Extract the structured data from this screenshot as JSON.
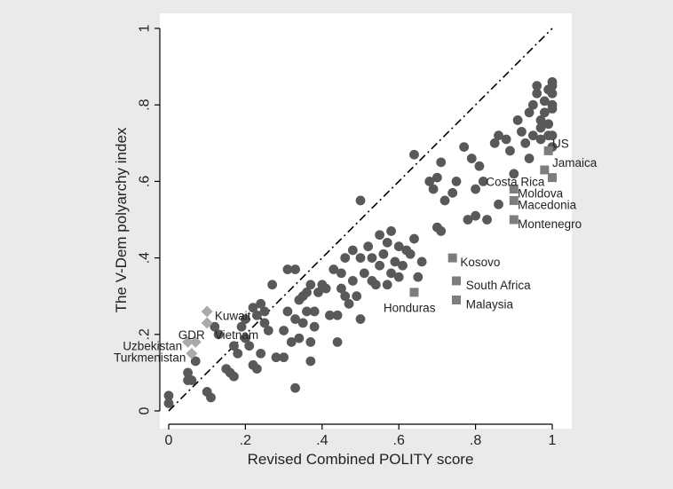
{
  "chart_data": {
    "type": "scatter",
    "title": "",
    "xlabel": "Revised Combined POLITY score",
    "ylabel": "The V-Dem polyarchy index",
    "xlim": [
      0,
      1
    ],
    "ylim": [
      0,
      1
    ],
    "x_ticks": [
      0,
      0.2,
      0.4,
      0.6,
      0.8,
      1
    ],
    "x_tick_labels": [
      "0",
      ".2",
      ".4",
      ".6",
      ".8",
      "1"
    ],
    "y_ticks": [
      0,
      0.2,
      0.4,
      0.6,
      0.8,
      1
    ],
    "y_tick_labels": [
      "0",
      ".2",
      ".4",
      ".6",
      ".8",
      "1"
    ],
    "grid": false,
    "reference_line": {
      "from": [
        0,
        0
      ],
      "to": [
        1,
        1
      ],
      "style": "dash-dot",
      "color": "#000000"
    },
    "colors": {
      "background": "#eaeaea",
      "plot_area": "#ffffff",
      "circle": "#595959",
      "square": "#7d7d7d",
      "diamond": "#aaaaaa"
    },
    "series": [
      {
        "marker": "circle",
        "points": [
          [
            0,
            0.04
          ],
          [
            0,
            0.02
          ],
          [
            0.05,
            0.1
          ],
          [
            0.05,
            0.08
          ],
          [
            0.07,
            0.13
          ],
          [
            0.06,
            0.08
          ],
          [
            0.1,
            0.05
          ],
          [
            0.11,
            0.035
          ],
          [
            0.12,
            0.22
          ],
          [
            0.13,
            0.2
          ],
          [
            0.15,
            0.11
          ],
          [
            0.16,
            0.1
          ],
          [
            0.17,
            0.09
          ],
          [
            0.17,
            0.17
          ],
          [
            0.18,
            0.15
          ],
          [
            0.19,
            0.22
          ],
          [
            0.2,
            0.24
          ],
          [
            0.2,
            0.19
          ],
          [
            0.21,
            0.17
          ],
          [
            0.22,
            0.27
          ],
          [
            0.22,
            0.12
          ],
          [
            0.23,
            0.11
          ],
          [
            0.23,
            0.25
          ],
          [
            0.24,
            0.28
          ],
          [
            0.24,
            0.15
          ],
          [
            0.25,
            0.26
          ],
          [
            0.25,
            0.23
          ],
          [
            0.26,
            0.21
          ],
          [
            0.27,
            0.33
          ],
          [
            0.28,
            0.14
          ],
          [
            0.3,
            0.14
          ],
          [
            0.3,
            0.21
          ],
          [
            0.31,
            0.37
          ],
          [
            0.31,
            0.26
          ],
          [
            0.32,
            0.18
          ],
          [
            0.33,
            0.37
          ],
          [
            0.33,
            0.06
          ],
          [
            0.33,
            0.24
          ],
          [
            0.34,
            0.29
          ],
          [
            0.34,
            0.19
          ],
          [
            0.35,
            0.3
          ],
          [
            0.35,
            0.23
          ],
          [
            0.36,
            0.31
          ],
          [
            0.36,
            0.26
          ],
          [
            0.37,
            0.33
          ],
          [
            0.37,
            0.18
          ],
          [
            0.37,
            0.13
          ],
          [
            0.38,
            0.26
          ],
          [
            0.38,
            0.22
          ],
          [
            0.39,
            0.31
          ],
          [
            0.4,
            0.33
          ],
          [
            0.41,
            0.32
          ],
          [
            0.42,
            0.25
          ],
          [
            0.43,
            0.37
          ],
          [
            0.44,
            0.25
          ],
          [
            0.44,
            0.18
          ],
          [
            0.45,
            0.36
          ],
          [
            0.45,
            0.32
          ],
          [
            0.46,
            0.4
          ],
          [
            0.46,
            0.3
          ],
          [
            0.47,
            0.28
          ],
          [
            0.48,
            0.42
          ],
          [
            0.48,
            0.34
          ],
          [
            0.49,
            0.3
          ],
          [
            0.5,
            0.55
          ],
          [
            0.5,
            0.24
          ],
          [
            0.5,
            0.4
          ],
          [
            0.51,
            0.36
          ],
          [
            0.52,
            0.43
          ],
          [
            0.53,
            0.4
          ],
          [
            0.53,
            0.34
          ],
          [
            0.54,
            0.33
          ],
          [
            0.55,
            0.46
          ],
          [
            0.55,
            0.38
          ],
          [
            0.56,
            0.41
          ],
          [
            0.57,
            0.44
          ],
          [
            0.57,
            0.33
          ],
          [
            0.58,
            0.47
          ],
          [
            0.58,
            0.36
          ],
          [
            0.59,
            0.39
          ],
          [
            0.6,
            0.43
          ],
          [
            0.6,
            0.35
          ],
          [
            0.61,
            0.38
          ],
          [
            0.62,
            0.42
          ],
          [
            0.63,
            0.41
          ],
          [
            0.64,
            0.67
          ],
          [
            0.64,
            0.45
          ],
          [
            0.65,
            0.35
          ],
          [
            0.66,
            0.39
          ],
          [
            0.68,
            0.6
          ],
          [
            0.69,
            0.58
          ],
          [
            0.7,
            0.48
          ],
          [
            0.7,
            0.61
          ],
          [
            0.71,
            0.65
          ],
          [
            0.71,
            0.47
          ],
          [
            0.72,
            0.55
          ],
          [
            0.74,
            0.57
          ],
          [
            0.75,
            0.6
          ],
          [
            0.77,
            0.69
          ],
          [
            0.78,
            0.5
          ],
          [
            0.79,
            0.66
          ],
          [
            0.8,
            0.58
          ],
          [
            0.8,
            0.51
          ],
          [
            0.81,
            0.64
          ],
          [
            0.82,
            0.6
          ],
          [
            0.83,
            0.5
          ],
          [
            0.85,
            0.7
          ],
          [
            0.86,
            0.72
          ],
          [
            0.86,
            0.54
          ],
          [
            0.88,
            0.71
          ],
          [
            0.89,
            0.68
          ],
          [
            0.9,
            0.62
          ],
          [
            0.91,
            0.76
          ],
          [
            0.92,
            0.73
          ],
          [
            0.93,
            0.7
          ],
          [
            0.94,
            0.78
          ],
          [
            0.94,
            0.66
          ],
          [
            0.95,
            0.8
          ],
          [
            0.95,
            0.72
          ],
          [
            0.96,
            0.85
          ],
          [
            0.96,
            0.83
          ],
          [
            0.97,
            0.76
          ],
          [
            0.97,
            0.74
          ],
          [
            0.97,
            0.71
          ],
          [
            0.98,
            0.81
          ],
          [
            0.98,
            0.78
          ],
          [
            0.99,
            0.84
          ],
          [
            0.99,
            0.75
          ],
          [
            0.99,
            0.72
          ],
          [
            1,
            0.86
          ],
          [
            1,
            0.85
          ],
          [
            1,
            0.83
          ],
          [
            1,
            0.8
          ],
          [
            1,
            0.79
          ],
          [
            1,
            0.72
          ],
          [
            1,
            0.69
          ]
        ]
      },
      {
        "marker": "square",
        "points": [
          {
            "label": "US",
            "x": 0.99,
            "y": 0.68
          },
          {
            "label": "Jamaica",
            "x": 0.98,
            "y": 0.63
          },
          {
            "label": "Costa Rica",
            "x": 1.0,
            "y": 0.61
          },
          {
            "label": "Moldova",
            "x": 0.9,
            "y": 0.58
          },
          {
            "label": "Macedonia",
            "x": 0.9,
            "y": 0.55
          },
          {
            "label": "Montenegro",
            "x": 0.9,
            "y": 0.5
          },
          {
            "label": "Kosovo",
            "x": 0.74,
            "y": 0.4
          },
          {
            "label": "South Africa",
            "x": 0.75,
            "y": 0.34
          },
          {
            "label": "Malaysia",
            "x": 0.75,
            "y": 0.29
          },
          {
            "label": "Honduras",
            "x": 0.64,
            "y": 0.31
          }
        ]
      },
      {
        "marker": "diamond",
        "points": [
          {
            "label": "Kuwait",
            "x": 0.1,
            "y": 0.26
          },
          {
            "label": "Vietnam",
            "x": 0.1,
            "y": 0.23
          },
          {
            "label": "GDR",
            "x": 0.07,
            "y": 0.18
          },
          {
            "label": "Uzbekistan",
            "x": 0.05,
            "y": 0.18
          },
          {
            "label": "Turkmenistan",
            "x": 0.06,
            "y": 0.15
          }
        ]
      }
    ],
    "annotations": [
      {
        "text": "US",
        "x": 1.0,
        "y": 0.7,
        "anchor": "start"
      },
      {
        "text": "Jamaica",
        "x": 1.0,
        "y": 0.65,
        "anchor": "start"
      },
      {
        "text": "Costa Rica",
        "x": 0.98,
        "y": 0.6,
        "anchor": "end"
      },
      {
        "text": "Moldova",
        "x": 0.91,
        "y": 0.57,
        "anchor": "start"
      },
      {
        "text": "Macedonia",
        "x": 0.91,
        "y": 0.54,
        "anchor": "start"
      },
      {
        "text": "Montenegro",
        "x": 0.91,
        "y": 0.49,
        "anchor": "start"
      },
      {
        "text": "Kosovo",
        "x": 0.76,
        "y": 0.39,
        "anchor": "start"
      },
      {
        "text": "South Africa",
        "x": 0.775,
        "y": 0.33,
        "anchor": "start"
      },
      {
        "text": "Malaysia",
        "x": 0.775,
        "y": 0.28,
        "anchor": "start"
      },
      {
        "text": "Honduras",
        "x": 0.56,
        "y": 0.27,
        "anchor": "start"
      },
      {
        "text": "Kuwait",
        "x": 0.12,
        "y": 0.25,
        "anchor": "start"
      },
      {
        "text": "Vietnam",
        "x": 0.12,
        "y": 0.2,
        "anchor": "start"
      },
      {
        "text": "GDR",
        "x": 0.025,
        "y": 0.2,
        "anchor": "start"
      },
      {
        "text": "Uzbekistan",
        "x": 0.035,
        "y": 0.17,
        "anchor": "end"
      },
      {
        "text": "Turkmenistan",
        "x": 0.045,
        "y": 0.14,
        "anchor": "end"
      }
    ]
  }
}
